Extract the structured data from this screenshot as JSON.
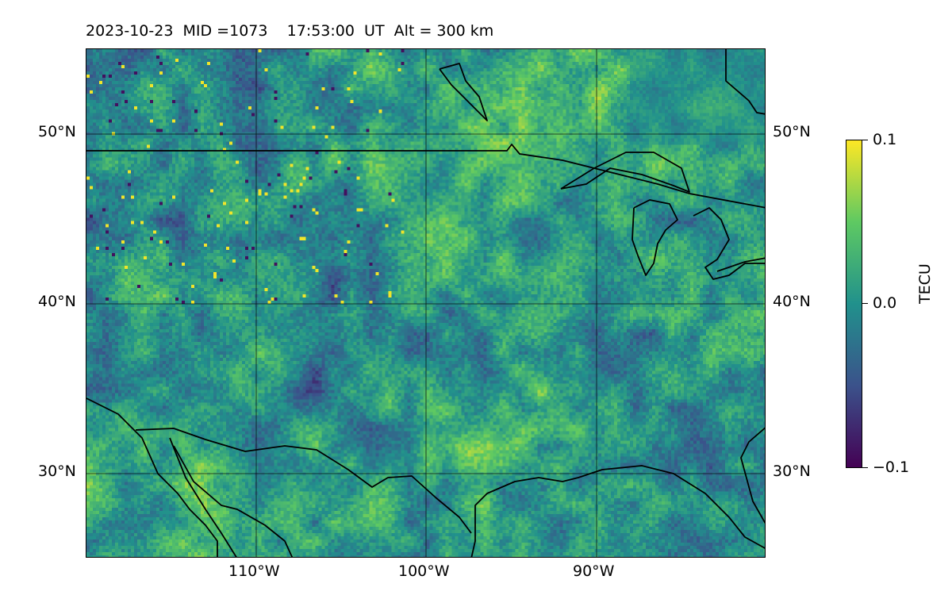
{
  "title": {
    "date": "2023-10-23",
    "mid": "MID =1073",
    "time": "17:53:00  UT",
    "alt": "Alt = 300 km"
  },
  "map": {
    "lat_labels": [
      "50°N",
      "40°N",
      "30°N"
    ],
    "lon_labels": [
      "110°W",
      "100°W",
      "90°W"
    ],
    "extent": {
      "lon_min": -120,
      "lon_max": -80,
      "lat_min": 25,
      "lat_max": 55
    },
    "colormap": "viridis",
    "gridlines": true
  },
  "colorbar": {
    "title": "TECU",
    "ticks": [
      "0.1",
      "0.0",
      "−0.1"
    ],
    "vmin": -0.1,
    "vmax": 0.1,
    "colors": [
      "#440154",
      "#3b528b",
      "#21918c",
      "#5ec962",
      "#fde725"
    ]
  }
}
